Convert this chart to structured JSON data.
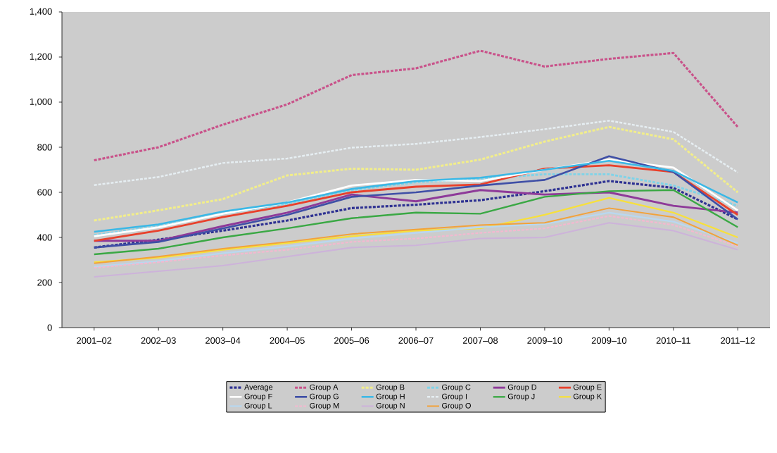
{
  "chart_data": {
    "type": "line",
    "categories": [
      "2001–02",
      "2002–03",
      "2003–04",
      "2004–05",
      "2005–06",
      "2006–07",
      "2007–08",
      "2009–10",
      "2009–10",
      "2010–11",
      "2011–12"
    ],
    "ylim": [
      0,
      1400
    ],
    "yticks": [
      0,
      200,
      400,
      600,
      800,
      {
        "value": 1000,
        "label": "1,000"
      },
      {
        "value": 1200,
        "label": "1,200"
      },
      {
        "value": 1400,
        "label": "1,400"
      }
    ],
    "grid": false,
    "legend": "bottom",
    "marker": "none",
    "series": [
      {
        "name": "Average",
        "color": "#2e3192",
        "line_style": "dashed",
        "values": [
          355,
          390,
          430,
          475,
          530,
          545,
          565,
          605,
          650,
          620,
          480
        ]
      },
      {
        "name": "Group A",
        "color": "#c9528a",
        "line_style": "dashed",
        "values": [
          742,
          800,
          900,
          990,
          1120,
          1150,
          1228,
          1158,
          1192,
          1218,
          890
        ]
      },
      {
        "name": "Group B",
        "color": "#f2ee8a",
        "line_style": "dashed",
        "values": [
          475,
          520,
          570,
          675,
          705,
          700,
          745,
          825,
          890,
          835,
          600
        ]
      },
      {
        "name": "Group C",
        "color": "#7fd3e8",
        "line_style": "dashed",
        "values": [
          410,
          450,
          505,
          550,
          610,
          645,
          660,
          680,
          680,
          630,
          540
        ]
      },
      {
        "name": "Group D",
        "color": "#8e3a99",
        "line_style": "solid",
        "values": [
          385,
          385,
          450,
          510,
          590,
          560,
          610,
          590,
          600,
          540,
          510
        ]
      },
      {
        "name": "Group E",
        "color": "#e8412c",
        "line_style": "solid",
        "values": [
          385,
          430,
          490,
          540,
          600,
          625,
          635,
          705,
          720,
          690,
          500
        ]
      },
      {
        "name": "Group F",
        "color": "#ffffff",
        "line_style": "solid",
        "values": [
          405,
          445,
          505,
          555,
          630,
          655,
          650,
          700,
          745,
          710,
          520
        ]
      },
      {
        "name": "Group G",
        "color": "#3f4fa6",
        "line_style": "solid",
        "values": [
          355,
          380,
          440,
          500,
          580,
          600,
          630,
          655,
          760,
          690,
          480
        ]
      },
      {
        "name": "Group H",
        "color": "#3ab8e6",
        "line_style": "solid",
        "values": [
          425,
          458,
          515,
          555,
          615,
          650,
          665,
          700,
          740,
          695,
          555
        ]
      },
      {
        "name": "Group I",
        "color": "#e6eef2",
        "line_style": "dashed",
        "values": [
          632,
          668,
          730,
          750,
          798,
          815,
          845,
          880,
          918,
          868,
          688
        ]
      },
      {
        "name": "Group J",
        "color": "#3aa844",
        "line_style": "solid",
        "values": [
          325,
          350,
          400,
          440,
          485,
          510,
          505,
          580,
          605,
          610,
          445
        ]
      },
      {
        "name": "Group K",
        "color": "#f7e03c",
        "line_style": "solid",
        "values": [
          290,
          310,
          345,
          375,
          405,
          430,
          440,
          500,
          575,
          510,
          400
        ]
      },
      {
        "name": "Group L",
        "color": "#b9d8f0",
        "line_style": "solid",
        "values": [
          270,
          295,
          330,
          360,
          395,
          420,
          445,
          460,
          510,
          470,
          375
        ]
      },
      {
        "name": "Group M",
        "color": "#f4b8d0",
        "line_style": "dashed",
        "values": [
          265,
          290,
          320,
          345,
          380,
          395,
          420,
          440,
          495,
          455,
          360
        ]
      },
      {
        "name": "Group N",
        "color": "#cdb3da",
        "line_style": "solid",
        "values": [
          225,
          250,
          275,
          315,
          355,
          365,
          395,
          400,
          465,
          430,
          345
        ]
      },
      {
        "name": "Group O",
        "color": "#f2a23a",
        "line_style": "solid",
        "values": [
          285,
          315,
          350,
          380,
          415,
          435,
          455,
          465,
          530,
          490,
          365
        ]
      }
    ]
  }
}
